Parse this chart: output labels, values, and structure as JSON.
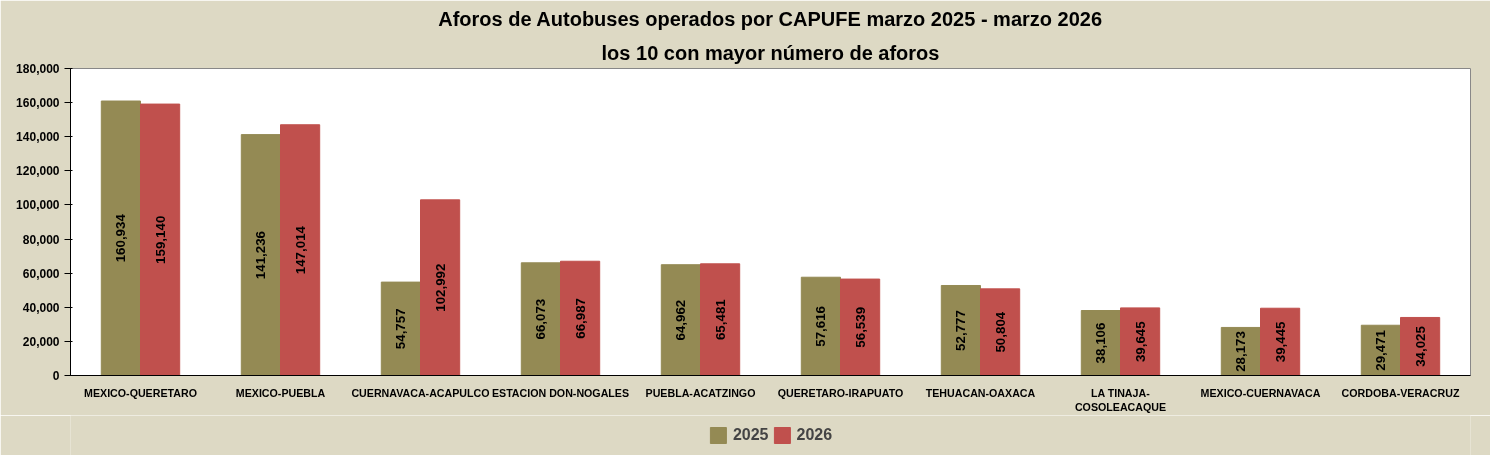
{
  "chart_data": {
    "type": "bar",
    "title": "Aforos de Autobuses operados por CAPUFE marzo 2025 - marzo 2026",
    "subtitle": "los 10 con mayor número de aforos",
    "categories": [
      "MEXICO-QUERETARO",
      "MEXICO-PUEBLA",
      "CUERNAVACA-ACAPULCO",
      "ESTACION DON-NOGALES",
      "PUEBLA-ACATZINGO",
      "QUERETARO-IRAPUATO",
      "TEHUACAN-OAXACA",
      "LA TINAJA-COSOLEACAQUE",
      "MEXICO-CUERNAVACA",
      "CORDOBA-VERACRUZ"
    ],
    "series": [
      {
        "name": "2025",
        "color": "#948a54",
        "values": [
          160934,
          141236,
          54757,
          66073,
          64962,
          57616,
          52777,
          38106,
          28173,
          29471
        ],
        "value_labels": [
          "160,934",
          "141,236",
          "54,757",
          "66,073",
          "64,962",
          "57,616",
          "52,777",
          "38,106",
          "28,173",
          "29,471"
        ]
      },
      {
        "name": "2026",
        "color": "#c0504d",
        "values": [
          159140,
          147014,
          102992,
          66987,
          65481,
          56539,
          50804,
          39645,
          39445,
          34025
        ],
        "value_labels": [
          "159,140",
          "147,014",
          "102,992",
          "66,987",
          "65,481",
          "56,539",
          "50,804",
          "39,645",
          "39,445",
          "34,025"
        ]
      }
    ],
    "ylim": [
      0,
      180000
    ],
    "yticks": [
      {
        "value": 0,
        "label": "0"
      },
      {
        "value": 20000,
        "label": "20,000"
      },
      {
        "value": 40000,
        "label": "40,000"
      },
      {
        "value": 60000,
        "label": "60,000"
      },
      {
        "value": 80000,
        "label": "80,000"
      },
      {
        "value": 100000,
        "label": "100,000"
      },
      {
        "value": 120000,
        "label": "120,000"
      },
      {
        "value": 140000,
        "label": "140,000"
      },
      {
        "value": 160000,
        "label": "160,000"
      },
      {
        "value": 180000,
        "label": "180,000"
      }
    ],
    "grid": false,
    "legend": "bottom"
  }
}
